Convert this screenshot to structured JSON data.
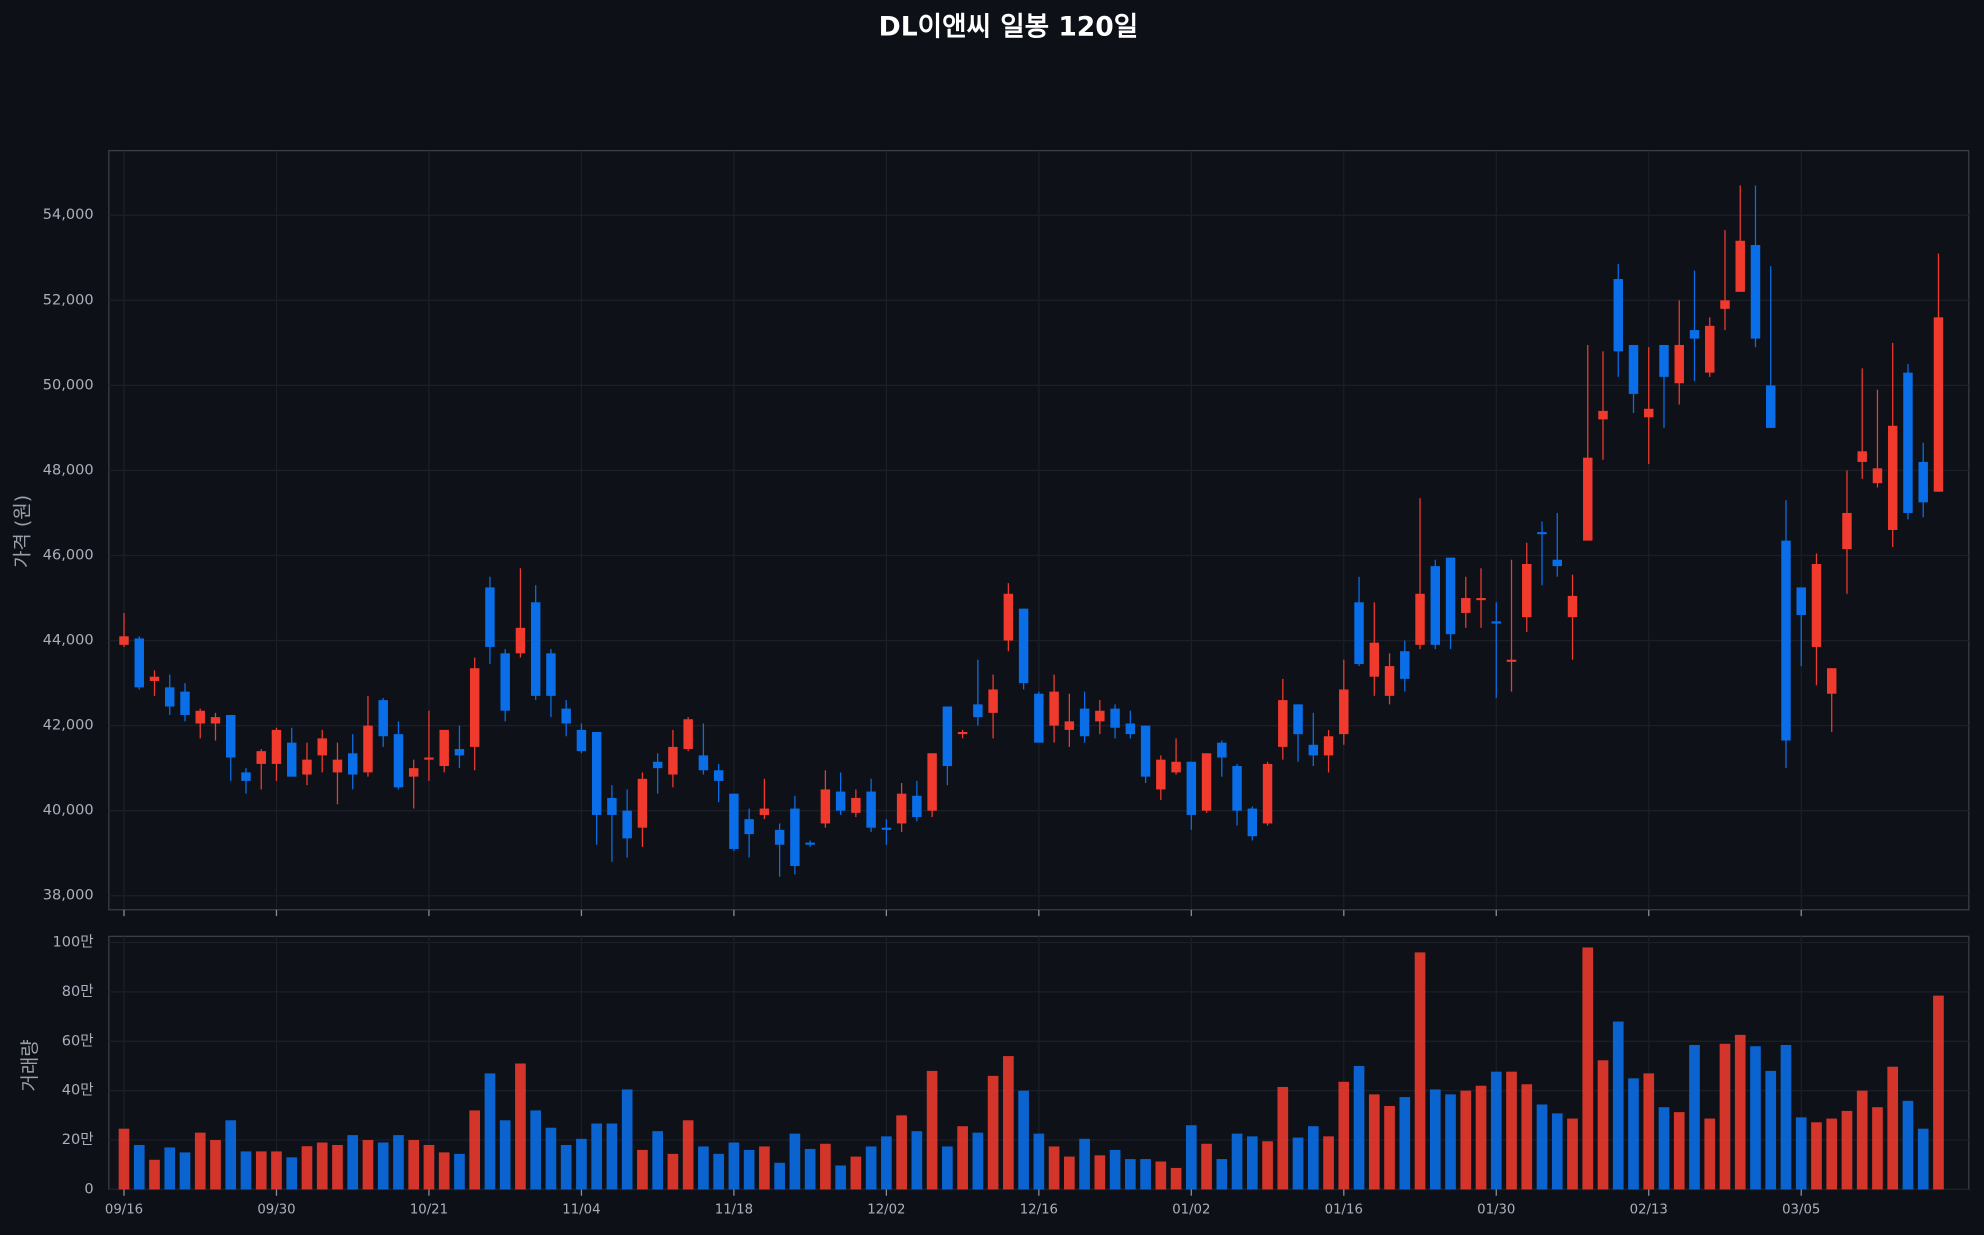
{
  "chart_data": {
    "type": "candlestick",
    "title": "DL이앤씨 일봉 120일",
    "y_label": "가격 (원)",
    "volume_label": "거래량",
    "up_color": "#f03a2e",
    "down_color": "#0a6ee8",
    "grid": true,
    "categories": [
      "09/16",
      null,
      null,
      null,
      null,
      null,
      null,
      null,
      null,
      null,
      "09/30",
      null,
      null,
      null,
      null,
      null,
      null,
      null,
      null,
      null,
      "10/21",
      null,
      null,
      null,
      null,
      null,
      null,
      null,
      null,
      null,
      "11/04",
      null,
      null,
      null,
      null,
      null,
      null,
      null,
      null,
      null,
      "11/18",
      null,
      null,
      null,
      null,
      null,
      null,
      null,
      null,
      null,
      "12/02",
      null,
      null,
      null,
      null,
      null,
      null,
      null,
      null,
      null,
      "12/16",
      null,
      null,
      null,
      null,
      null,
      null,
      null,
      null,
      null,
      "01/02",
      null,
      null,
      null,
      null,
      null,
      null,
      null,
      null,
      null,
      "01/16",
      null,
      null,
      null,
      null,
      null,
      null,
      null,
      null,
      null,
      "01/30",
      null,
      null,
      null,
      null,
      null,
      null,
      null,
      null,
      null,
      "02/13",
      null,
      null,
      null,
      null,
      null,
      null,
      null,
      null,
      null,
      "03/05",
      null,
      null,
      null,
      null,
      null,
      null,
      null,
      null,
      null
    ],
    "open": [
      43900,
      44050,
      43050,
      42900,
      42800,
      42050,
      42050,
      42250,
      40900,
      41100,
      41100,
      41600,
      40850,
      41300,
      40900,
      41350,
      40900,
      42600,
      41800,
      40800,
      41200,
      41050,
      41450,
      41500,
      45250,
      43700,
      43700,
      44900,
      43700,
      42400,
      41900,
      41850,
      40300,
      40000,
      39600,
      41150,
      40850,
      41450,
      41300,
      40950,
      40400,
      39800,
      39900,
      39550,
      40050,
      39250,
      39700,
      40450,
      39950,
      40450,
      39600,
      39700,
      40350,
      40000,
      42450,
      41800,
      42500,
      42300,
      44000,
      44750,
      42750,
      42000,
      41900,
      42400,
      42100,
      42400,
      42050,
      42000,
      40500,
      40900,
      41150,
      40000,
      41600,
      41050,
      40050,
      39700,
      41500,
      42500,
      41550,
      41300,
      41800,
      44900,
      43150,
      42700,
      43750,
      43900,
      45750,
      45950,
      44650,
      44950,
      44450,
      43500,
      44550,
      46550,
      45900,
      44550,
      46350,
      49200,
      52500,
      50950,
      49250,
      50950,
      50050,
      51300,
      50300,
      51800,
      52200,
      53300,
      50000,
      46350,
      45250,
      43850,
      42750,
      46150,
      48200,
      47700,
      46600,
      50300,
      48200,
      47500
    ],
    "high": [
      44650,
      44100,
      43300,
      43200,
      43000,
      42400,
      42300,
      42250,
      41000,
      41450,
      41950,
      41950,
      41600,
      41900,
      41600,
      41800,
      42700,
      42650,
      42100,
      41200,
      42350,
      41900,
      42000,
      43600,
      45500,
      43800,
      45700,
      45300,
      43800,
      42600,
      42050,
      41850,
      40600,
      40500,
      40900,
      41350,
      41900,
      42200,
      42050,
      41100,
      40400,
      40050,
      40750,
      39700,
      40350,
      39300,
      40950,
      40900,
      40500,
      40750,
      39800,
      40650,
      40700,
      41350,
      42450,
      41900,
      43550,
      43200,
      45350,
      44750,
      42800,
      43200,
      42750,
      42800,
      42600,
      42500,
      42350,
      42000,
      41300,
      41700,
      41150,
      41350,
      41650,
      41100,
      40100,
      41150,
      43100,
      42500,
      42300,
      41900,
      43550,
      45500,
      44900,
      43700,
      44000,
      47350,
      45900,
      45950,
      45500,
      45700,
      44900,
      45900,
      46300,
      46800,
      47000,
      45550,
      50950,
      50800,
      52850,
      50950,
      50900,
      50950,
      52000,
      52700,
      51600,
      53650,
      54700,
      54700,
      52800,
      47300,
      45250,
      46050,
      43350,
      48000,
      50400,
      49900,
      51000,
      50500,
      48650,
      53100
    ],
    "low": [
      43850,
      42850,
      42700,
      42250,
      42100,
      41700,
      41650,
      40700,
      40400,
      40500,
      40700,
      40800,
      40600,
      40900,
      40150,
      40500,
      40800,
      41500,
      40500,
      40050,
      40700,
      40900,
      41000,
      40950,
      43450,
      42100,
      43600,
      42600,
      42200,
      41750,
      41350,
      39200,
      38800,
      38900,
      39150,
      40400,
      40550,
      41400,
      40850,
      40200,
      39050,
      38900,
      39800,
      38450,
      38500,
      39150,
      39600,
      39900,
      39850,
      39500,
      39200,
      39500,
      39750,
      39850,
      40600,
      41700,
      42000,
      41700,
      43750,
      42850,
      41600,
      41600,
      41500,
      41600,
      41800,
      41700,
      41700,
      40650,
      40250,
      40850,
      39550,
      39950,
      40800,
      39650,
      39300,
      39650,
      41200,
      41150,
      41050,
      40900,
      41550,
      43400,
      42700,
      42500,
      42800,
      43800,
      43800,
      43800,
      44300,
      44300,
      42650,
      42800,
      44200,
      45300,
      45500,
      43550,
      46350,
      48250,
      50200,
      49350,
      48150,
      49000,
      49550,
      50100,
      50200,
      51300,
      52200,
      50900,
      49000,
      41000,
      43400,
      42950,
      41850,
      45100,
      47800,
      47600,
      46200,
      46850,
      46900,
      47500
    ],
    "close": [
      44100,
      42900,
      43150,
      42450,
      42250,
      42350,
      42200,
      41250,
      40700,
      41400,
      41900,
      40800,
      41200,
      41700,
      41200,
      40850,
      42000,
      41750,
      40550,
      41000,
      41250,
      41900,
      41300,
      43350,
      43850,
      42350,
      44300,
      42700,
      42700,
      42050,
      41400,
      39900,
      39900,
      39350,
      40750,
      41000,
      41500,
      42150,
      40950,
      40700,
      39100,
      39450,
      40050,
      39200,
      38700,
      39200,
      40500,
      40000,
      40300,
      39600,
      39550,
      40400,
      39850,
      41350,
      41050,
      41850,
      42200,
      42850,
      45100,
      43000,
      41600,
      42800,
      42100,
      41750,
      42350,
      41950,
      41800,
      40800,
      41200,
      41150,
      39900,
      41350,
      41250,
      40000,
      39400,
      41100,
      42600,
      41800,
      41300,
      41750,
      42850,
      43450,
      43950,
      43400,
      43100,
      45100,
      43900,
      44150,
      45000,
      45000,
      44400,
      43550,
      45800,
      46500,
      45750,
      45050,
      48300,
      49400,
      50800,
      49800,
      49450,
      50200,
      50950,
      51100,
      51400,
      52000,
      53400,
      51100,
      49000,
      41650,
      44600,
      45800,
      43350,
      47000,
      48450,
      48050,
      49050,
      47000,
      47250,
      51600
    ],
    "volume": [
      246000,
      180000,
      120000,
      170000,
      150000,
      230000,
      200000,
      280000,
      154000,
      154000,
      154000,
      130000,
      175000,
      190000,
      180000,
      220000,
      200000,
      190000,
      220000,
      200000,
      180000,
      150000,
      144000,
      320000,
      470000,
      280000,
      510000,
      320000,
      250000,
      180000,
      205000,
      267000,
      267000,
      405000,
      160000,
      236000,
      144000,
      280000,
      174000,
      144000,
      190000,
      160000,
      174000,
      108000,
      226000,
      164000,
      185000,
      97000,
      133000,
      174000,
      215000,
      300000,
      236000,
      480000,
      174000,
      256000,
      230000,
      460000,
      540000,
      400000,
      226000,
      174000,
      133000,
      205000,
      138000,
      160000,
      123000,
      123000,
      113000,
      87000,
      260000,
      185000,
      123000,
      226000,
      215000,
      195000,
      415000,
      210000,
      256000,
      215000,
      436000,
      500000,
      385000,
      338000,
      374000,
      960000,
      405000,
      385000,
      400000,
      420000,
      477000,
      477000,
      426000,
      344000,
      308000,
      287000,
      980000,
      523000,
      680000,
      450000,
      470000,
      333000,
      313000,
      585000,
      287000,
      590000,
      626000,
      580000,
      480000,
      585000,
      292000,
      272000,
      287000,
      318000,
      400000,
      333000,
      497000,
      359000,
      246000,
      785000
    ],
    "ylim": [
      37670,
      55520
    ],
    "yticks": [
      {
        "value": 38000,
        "label": "38,000"
      },
      {
        "value": 40000,
        "label": "40,000"
      },
      {
        "value": 42000,
        "label": "42,000"
      },
      {
        "value": 44000,
        "label": "44,000"
      },
      {
        "value": 46000,
        "label": "46,000"
      },
      {
        "value": 48000,
        "label": "48,000"
      },
      {
        "value": 50000,
        "label": "50,000"
      },
      {
        "value": 52000,
        "label": "52,000"
      },
      {
        "value": 54000,
        "label": "54,000"
      }
    ],
    "volume_ylim": [
      0,
      1025000
    ],
    "volume_yticks": [
      0,
      {
        "value": 200000,
        "label": "20만"
      },
      {
        "value": 400000,
        "label": "40만"
      },
      {
        "value": 600000,
        "label": "60만"
      },
      {
        "value": 800000,
        "label": "80만"
      },
      {
        "value": 1000000,
        "label": "100만"
      }
    ]
  }
}
